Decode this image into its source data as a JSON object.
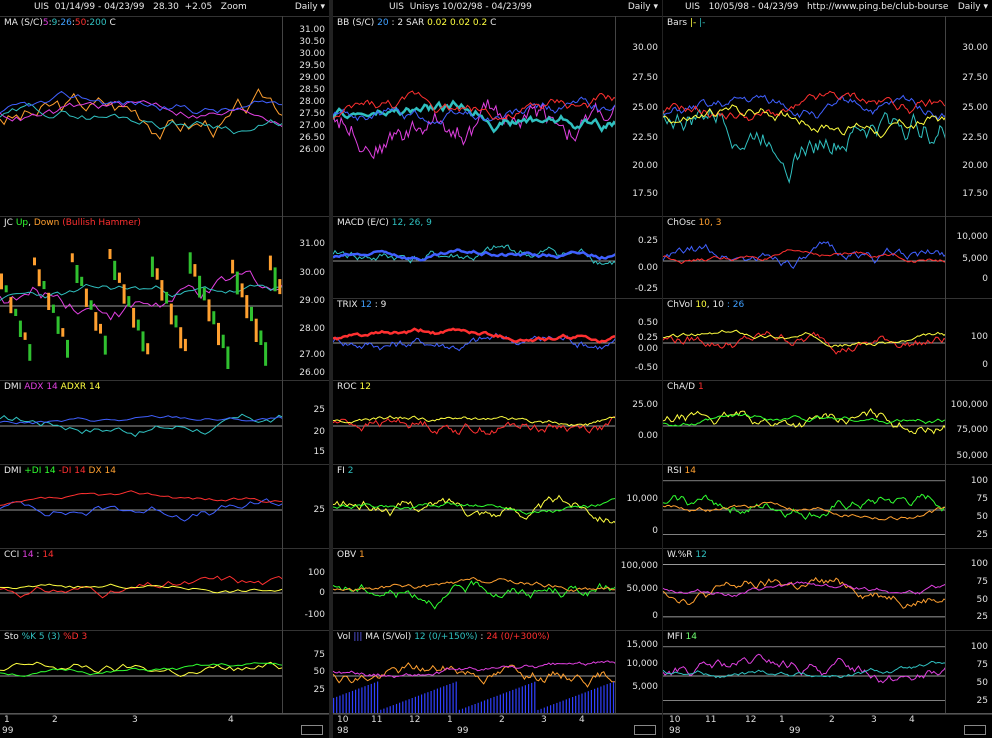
{
  "colors": {
    "white": "#e8e8e8",
    "yellow": "#ffff40",
    "red": "#ff3030",
    "green": "#30ff30",
    "cyan": "#30c0c0",
    "magenta": "#e040e0",
    "orange": "#ffa030",
    "blue": "#4060ff"
  },
  "columns": [
    {
      "header": {
        "symbol": "UIS",
        "range": "01/14/99 - 04/23/99",
        "price": "28.30",
        "change": "+2.05",
        "zoom": "Zoom",
        "period": "Daily"
      },
      "panels": [
        {
          "legend": [
            [
              "MA (S/C)",
              "w"
            ],
            [
              "5",
              "m"
            ],
            [
              ":",
              "w"
            ],
            [
              "9",
              "c"
            ],
            [
              ":",
              "w"
            ],
            [
              "26",
              "lb"
            ],
            [
              ":",
              "w"
            ],
            [
              "50",
              "r"
            ],
            [
              ":",
              "w"
            ],
            [
              "200",
              "c"
            ],
            [
              "  C",
              "w"
            ]
          ],
          "ticks": [
            "31.00",
            "30.50",
            "30.00",
            "29.50",
            "29.00",
            "28.50",
            "28.00",
            "27.50",
            "27.00",
            "26.50",
            "26.00"
          ]
        },
        {
          "legend": [
            [
              "JC",
              "w"
            ],
            [
              " Up",
              "g"
            ],
            [
              ", ",
              "w"
            ],
            [
              "Down",
              "o"
            ],
            [
              " (Bullish Hammer)",
              "r"
            ]
          ],
          "ticks": [
            "31.00",
            "30.00",
            "29.00",
            "28.00",
            "27.00",
            "26.00"
          ]
        },
        {
          "legend": [
            [
              "DMI",
              "w"
            ],
            [
              " ADX 14",
              "m"
            ],
            [
              " ADXR 14",
              "y"
            ]
          ],
          "ticks": [
            "25",
            "20",
            "15"
          ]
        },
        {
          "legend": [
            [
              "DMI",
              "w"
            ],
            [
              " +DI 14",
              "g"
            ],
            [
              " -DI 14",
              "r"
            ],
            [
              " DX 14",
              "o"
            ]
          ],
          "ticks": [
            "25"
          ]
        },
        {
          "legend": [
            [
              "CCI",
              "w"
            ],
            [
              " 14",
              "m"
            ],
            [
              " : ",
              "w"
            ],
            [
              "14",
              "r"
            ]
          ],
          "ticks": [
            "100",
            "0",
            "-100"
          ]
        },
        {
          "legend": [
            [
              "Sto",
              "w"
            ],
            [
              " %K 5 (3)",
              "c"
            ],
            [
              " %D 3",
              "r"
            ]
          ],
          "ticks": [
            "75",
            "50",
            "25"
          ]
        }
      ],
      "xaxis": {
        "labels": [
          "1",
          "2",
          "3",
          "4"
        ],
        "years": [
          "99"
        ]
      }
    },
    {
      "header": {
        "symbol": "UIS",
        "range": "Unisys 10/02/98 - 04/23/99",
        "period": "Daily"
      },
      "panels": [
        {
          "legend": [
            [
              "BB (S/C)",
              "w"
            ],
            [
              " 20",
              "lb"
            ],
            [
              " : 2",
              "w"
            ],
            [
              "  SAR",
              "w"
            ],
            [
              "  0.02",
              "y"
            ],
            [
              "  0.02",
              "y"
            ],
            [
              "  0.2",
              "y"
            ],
            [
              "   C",
              "w"
            ]
          ],
          "ticks": [
            "30.00",
            "27.50",
            "25.00",
            "22.50",
            "20.00",
            "17.50"
          ]
        },
        {
          "legend": [
            [
              "MACD (E/C)",
              "w"
            ],
            [
              " 12, 26, 9",
              "c"
            ]
          ],
          "ticks": [
            "0.25",
            "0.00",
            "-0.25"
          ]
        },
        {
          "legend": [
            [
              "TRIX",
              "w"
            ],
            [
              " 12",
              "lb"
            ],
            [
              " : 9",
              "w"
            ]
          ],
          "ticks": [
            "0.50",
            "0.25",
            "0.00",
            "-0.50"
          ]
        },
        {
          "legend": [
            [
              "ROC",
              "w"
            ],
            [
              " 12",
              "y"
            ]
          ],
          "ticks": [
            "25.00",
            "0.00"
          ]
        },
        {
          "legend": [
            [
              "FI",
              "w"
            ],
            [
              " 2",
              "c"
            ]
          ],
          "ticks": [
            "10,000",
            "0"
          ]
        },
        {
          "legend": [
            [
              "OBV",
              "w"
            ],
            [
              " 1",
              "o"
            ]
          ],
          "ticks": [
            "100,000",
            "50,000",
            "0"
          ]
        },
        {
          "legend": [
            [
              "Vol",
              "w"
            ],
            [
              " |||",
              "b"
            ],
            [
              "  MA (S/Vol)",
              "w"
            ],
            [
              " 12 (0/+150%)",
              "c"
            ],
            [
              " : ",
              "w"
            ],
            [
              "24 (0/+300%)",
              "r"
            ]
          ],
          "ticks": [
            "15,000",
            "10,000",
            "5,000"
          ]
        }
      ],
      "xaxis": {
        "labels": [
          "10",
          "11",
          "12",
          "1",
          "2",
          "3",
          "4"
        ],
        "years": [
          "98",
          "99"
        ]
      }
    },
    {
      "header": {
        "symbol": "UIS",
        "range": "10/05/98 - 04/23/99",
        "url": "http://www.ping.be/club-bourse",
        "period": "Daily"
      },
      "panels": [
        {
          "legend": [
            [
              "Bars",
              "w"
            ],
            [
              "  |-",
              "y"
            ],
            [
              "  |-",
              "c"
            ]
          ],
          "ticks": [
            "30.00",
            "27.50",
            "25.00",
            "22.50",
            "20.00",
            "17.50"
          ]
        },
        {
          "legend": [
            [
              "ChOsc",
              "w"
            ],
            [
              " 10, 3",
              "o"
            ]
          ],
          "ticks": [
            "10,000",
            "5,000",
            "0"
          ]
        },
        {
          "legend": [
            [
              "ChVol",
              "w"
            ],
            [
              " 10",
              "y"
            ],
            [
              ", 10",
              "w"
            ],
            [
              " : 26",
              "lb"
            ]
          ],
          "ticks": [
            "100",
            "0"
          ]
        },
        {
          "legend": [
            [
              "ChA/D",
              "w"
            ],
            [
              " 1",
              "r"
            ]
          ],
          "ticks": [
            "100,000",
            "75,000",
            "50,000"
          ]
        },
        {
          "legend": [
            [
              "RSI",
              "w"
            ],
            [
              " 14",
              "o"
            ]
          ],
          "ticks": [
            "100",
            "75",
            "50",
            "25"
          ]
        },
        {
          "legend": [
            [
              "W.%R",
              "w"
            ],
            [
              " 12",
              "c"
            ]
          ],
          "ticks": [
            "100",
            "75",
            "50",
            "25"
          ]
        },
        {
          "legend": [
            [
              "MFI",
              "w"
            ],
            [
              " 14",
              "gr"
            ]
          ],
          "ticks": [
            "100",
            "75",
            "50",
            "25"
          ]
        }
      ],
      "xaxis": {
        "labels": [
          "10",
          "11",
          "12",
          "1",
          "2",
          "3",
          "4"
        ],
        "years": [
          "98",
          "99"
        ]
      }
    }
  ]
}
